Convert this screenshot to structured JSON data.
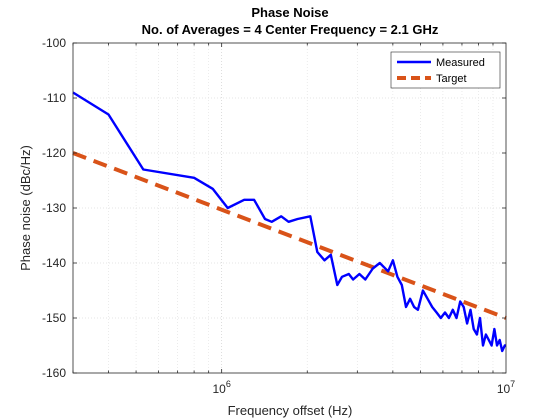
{
  "chart_data": {
    "type": "line",
    "title": "Phase Noise",
    "subtitle": "No. of Averages = 4 Center Frequency = 2.1 GHz",
    "xlabel": "Frequency offset (Hz)",
    "ylabel": "Phase noise (dBc/Hz)",
    "xscale": "log",
    "xlim": [
      300000,
      10000000
    ],
    "ylim": [
      -160,
      -100
    ],
    "yticks": [
      -160,
      -150,
      -140,
      -130,
      -120,
      -110,
      -100
    ],
    "yticklabels": [
      "-160",
      "-150",
      "-140",
      "-130",
      "-120",
      "-110",
      "-100"
    ],
    "xticks": [
      1000000,
      10000000
    ],
    "xticklabels": [
      {
        "base": "10",
        "exp": "6"
      },
      {
        "base": "10",
        "exp": "7"
      }
    ],
    "grid": true,
    "legend": "top-right",
    "series": [
      {
        "name": "Measured",
        "color": "#0000ff",
        "style": "solid",
        "x": [
          300000,
          400000,
          530000,
          800000,
          930000,
          1050000,
          1200000,
          1300000,
          1420000,
          1500000,
          1620000,
          1720000,
          1850000,
          2050000,
          2170000,
          2300000,
          2420000,
          2550000,
          2650000,
          2800000,
          2900000,
          3050000,
          3200000,
          3400000,
          3600000,
          3850000,
          4000000,
          4150000,
          4300000,
          4450000,
          4600000,
          4750000,
          4900000,
          5100000,
          5300000,
          5500000,
          5700000,
          5900000,
          6100000,
          6300000,
          6500000,
          6700000,
          6900000,
          7100000,
          7300000,
          7500000,
          7700000,
          7900000,
          8100000,
          8300000,
          8500000,
          8700000,
          8900000,
          9100000,
          9300000,
          9500000,
          9700000,
          9900000,
          10000000
        ],
        "y": [
          -109,
          -113,
          -123,
          -124.5,
          -126.5,
          -130,
          -128.5,
          -128.5,
          -132,
          -132.5,
          -131.5,
          -132.5,
          -132,
          -131.5,
          -138,
          -139.5,
          -138.5,
          -144,
          -142.5,
          -142,
          -143,
          -142,
          -143,
          -141,
          -140,
          -141.5,
          -139.5,
          -142.5,
          -144,
          -148,
          -146.5,
          -148,
          -148.5,
          -145,
          -146.5,
          -148,
          -149,
          -150,
          -149,
          -150,
          -148.5,
          -150,
          -147,
          -148,
          -151,
          -148.5,
          -152,
          -153,
          -150,
          -155,
          -153,
          -154,
          -155,
          -152,
          -155,
          -154,
          -156,
          -155,
          -155
        ]
      },
      {
        "name": "Target",
        "color": "#d95319",
        "style": "dashed",
        "x": [
          300000,
          10000000
        ],
        "y": [
          -120,
          -150
        ]
      }
    ]
  }
}
